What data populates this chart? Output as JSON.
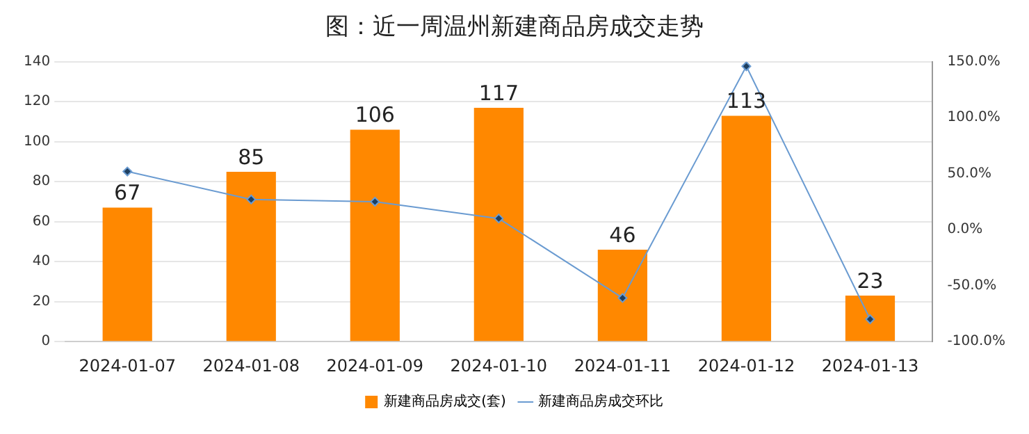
{
  "chart_data": {
    "type": "bar",
    "title": "图：近一周温州新建商品房成交走势",
    "categories": [
      "2024-01-07",
      "2024-01-08",
      "2024-01-09",
      "2024-01-10",
      "2024-01-11",
      "2024-01-12",
      "2024-01-13"
    ],
    "series": [
      {
        "name": "新建商品房成交(套)",
        "color": "#ff8800",
        "values": [
          67,
          85,
          106,
          117,
          46,
          113,
          23
        ],
        "value_labels": [
          "67",
          "85",
          "106",
          "117",
          "46",
          "113",
          "23"
        ]
      },
      {
        "name": "新建商品房成交环比",
        "type": "line",
        "axis": "y2",
        "color": "#6a9bd1",
        "values": [
          52,
          27,
          25,
          10,
          -61,
          146,
          -80
        ]
      }
    ],
    "ylim": [
      0,
      140
    ],
    "yticks": [
      0,
      20,
      40,
      60,
      80,
      100,
      120,
      140
    ],
    "y2lim": [
      -100,
      150
    ],
    "y2ticks": [
      {
        "value": -100,
        "label": "-100.0%"
      },
      {
        "value": -50,
        "label": "-50.0%"
      },
      {
        "value": 0,
        "label": "0.0%"
      },
      {
        "value": 50,
        "label": "50.0%"
      },
      {
        "value": 100,
        "label": "100.0%"
      },
      {
        "value": 150,
        "label": "150.0%"
      }
    ],
    "grid": "y",
    "legend": "bottom",
    "marker": "diamond"
  }
}
